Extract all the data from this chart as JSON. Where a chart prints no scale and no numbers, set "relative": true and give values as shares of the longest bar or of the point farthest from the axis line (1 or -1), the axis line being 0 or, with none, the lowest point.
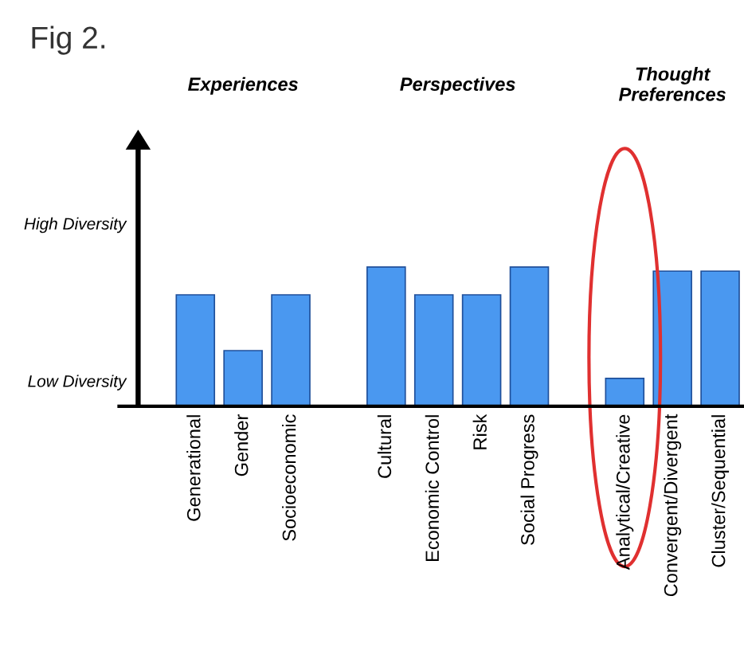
{
  "chart_data": {
    "type": "bar",
    "relative": true,
    "color": "#4a98f0",
    "categories": [
      "Generational",
      "Gender",
      "Socioeconomic",
      null,
      "Cultural",
      "Economic Control",
      "Risk",
      "Social Progress",
      null,
      "Analytical/Creative",
      "Convergent/Divergent",
      "Cluster/Sequential"
    ],
    "values": [
      0.8,
      0.4,
      0.8,
      null,
      1,
      0.8,
      0.8,
      1,
      null,
      0.2,
      0.97,
      0.97
    ],
    "annotations": [
      "Fig 2.",
      "High Diversity",
      "Low Diversity",
      "Experiences",
      "Perspectives",
      "Thought Preferences"
    ]
  }
}
